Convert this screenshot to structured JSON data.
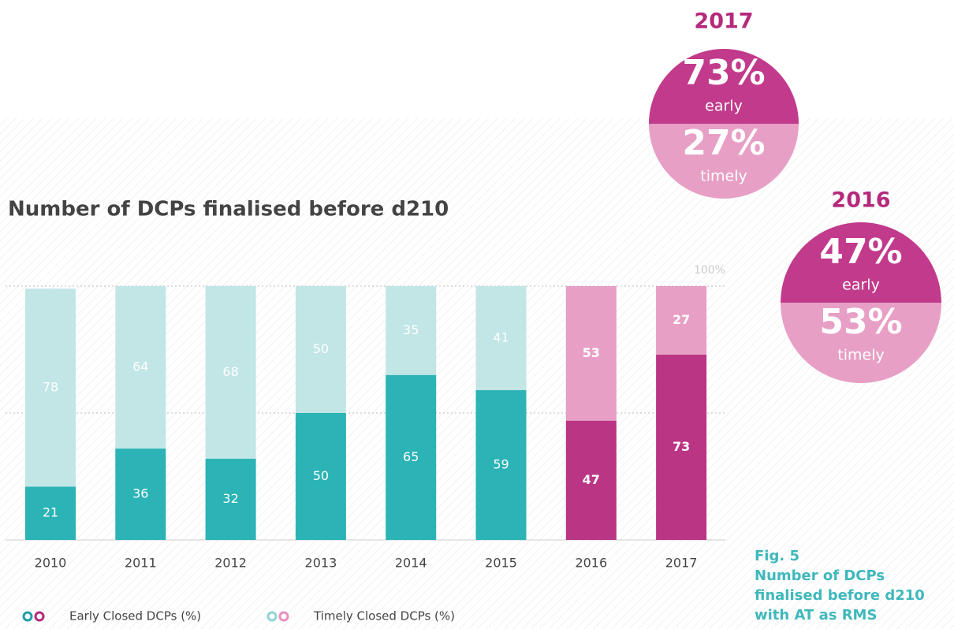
{
  "chart_data": {
    "type": "stacked_bar",
    "title": "Number of DCPs finalised before d210",
    "categories": [
      "2010",
      "2011",
      "2012",
      "2013",
      "2014",
      "2015",
      "2016",
      "2017"
    ],
    "series": [
      {
        "name": "Early Closed DCPs (%)",
        "legend_colors": [
          "#1f9fa6",
          "#b52a7c"
        ],
        "colors": [
          "#2bb3b6",
          "#2bb3b6",
          "#2bb3b6",
          "#2bb3b6",
          "#2bb3b6",
          "#2bb3b6",
          "#bb3585",
          "#bb3585"
        ],
        "values": [
          21,
          36,
          32,
          50,
          65,
          59,
          47,
          73
        ]
      },
      {
        "name": "Timely Closed DCPs (%)",
        "legend_colors": [
          "#8fd3d5",
          "#e591bd"
        ],
        "colors": [
          "#c2e5e6",
          "#c2e5e6",
          "#c2e5e6",
          "#c2e5e6",
          "#c2e5e6",
          "#c2e5e6",
          "#e79fc5",
          "#e79fc5"
        ],
        "values": [
          78,
          64,
          68,
          50,
          35,
          41,
          53,
          27
        ]
      }
    ],
    "ylim": [
      0,
      100
    ],
    "yticks": [
      {
        "value": 100,
        "label": "100%"
      }
    ],
    "grid_values": [
      50,
      100
    ],
    "summaries": [
      {
        "year": "2017",
        "values": [
          73,
          27
        ],
        "value_labels": [
          "73%",
          "27%"
        ],
        "labels": [
          "early",
          "timely"
        ]
      },
      {
        "year": "2016",
        "values": [
          47,
          53
        ],
        "value_labels": [
          "47%",
          "53%"
        ],
        "labels": [
          "early",
          "timely"
        ]
      }
    ],
    "caption": [
      "Fig. 5",
      "Number of DCPs",
      "finalised before d210",
      "with AT as RMS"
    ]
  }
}
